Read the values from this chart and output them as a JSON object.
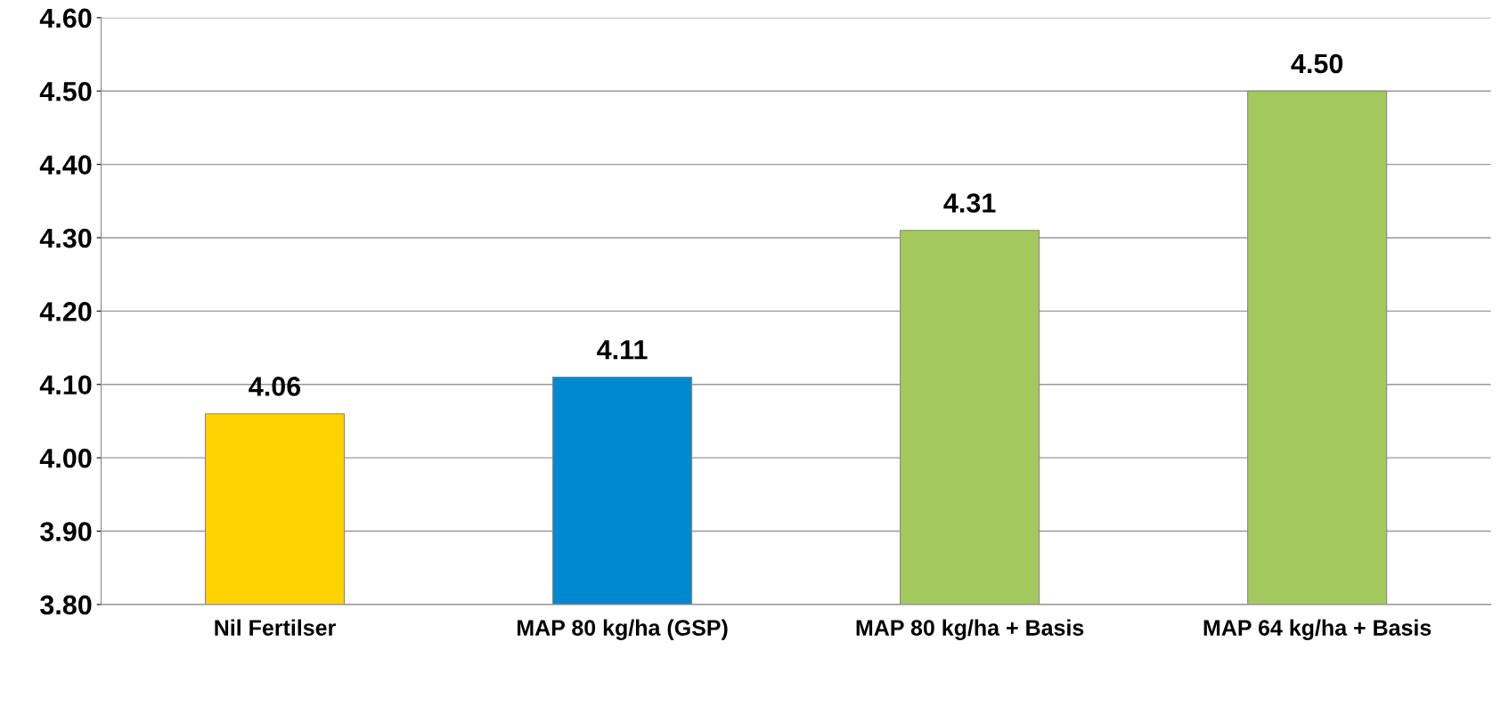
{
  "chart_data": {
    "type": "bar",
    "categories": [
      "Nil Fertilser",
      "MAP 80 kg/ha (GSP)",
      "MAP 80 kg/ha + Basis",
      "MAP 64 kg/ha + Basis"
    ],
    "values": [
      4.06,
      4.11,
      4.31,
      4.5
    ],
    "value_labels": [
      "4.06",
      "4.11",
      "4.31",
      "4.50"
    ],
    "colors": [
      "#ffd200",
      "#0089d0",
      "#a3c95c",
      "#a3c95c"
    ],
    "ylim": [
      3.8,
      4.6
    ],
    "yticks": [
      {
        "value": 3.8,
        "label": "3.80"
      },
      {
        "value": 3.9,
        "label": "3.90"
      },
      {
        "value": 4.0,
        "label": "4.00"
      },
      {
        "value": 4.1,
        "label": "4.10"
      },
      {
        "value": 4.2,
        "label": "4.20"
      },
      {
        "value": 4.3,
        "label": "4.30"
      },
      {
        "value": 4.4,
        "label": "4.40"
      },
      {
        "value": 4.5,
        "label": "4.50"
      },
      {
        "value": 4.6,
        "label": "4.60"
      }
    ],
    "grid": "y"
  }
}
